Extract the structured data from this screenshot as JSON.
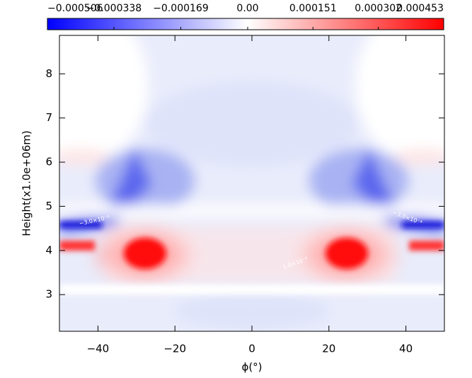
{
  "chart_data": {
    "type": "contour",
    "x_label": "ϕ(°)",
    "y_label": "Height(x1.0e+06m)",
    "xlim": [
      -50,
      50
    ],
    "ylim": [
      2.17,
      8.87
    ],
    "xticks": [
      {
        "value": -40,
        "label": "−40"
      },
      {
        "value": -20,
        "label": "−20"
      },
      0,
      20,
      40
    ],
    "yticks": [
      3,
      4,
      5,
      6,
      7,
      8
    ],
    "clim": [
      -0.000506,
      0.000453
    ],
    "cticks": [
      {
        "value": -0.000506,
        "label": "−0.000506"
      },
      {
        "value": -0.000338,
        "label": "−0.000338"
      },
      {
        "value": -0.000169,
        "label": "−0.000169"
      },
      {
        "value": 0,
        "label": "0.00"
      },
      0.000151,
      0.000302,
      0.000453
    ],
    "annotations": [
      "−3.0×10⁻⁴",
      "−3.0×10⁻⁴",
      "1.0×10⁻⁴"
    ]
  }
}
